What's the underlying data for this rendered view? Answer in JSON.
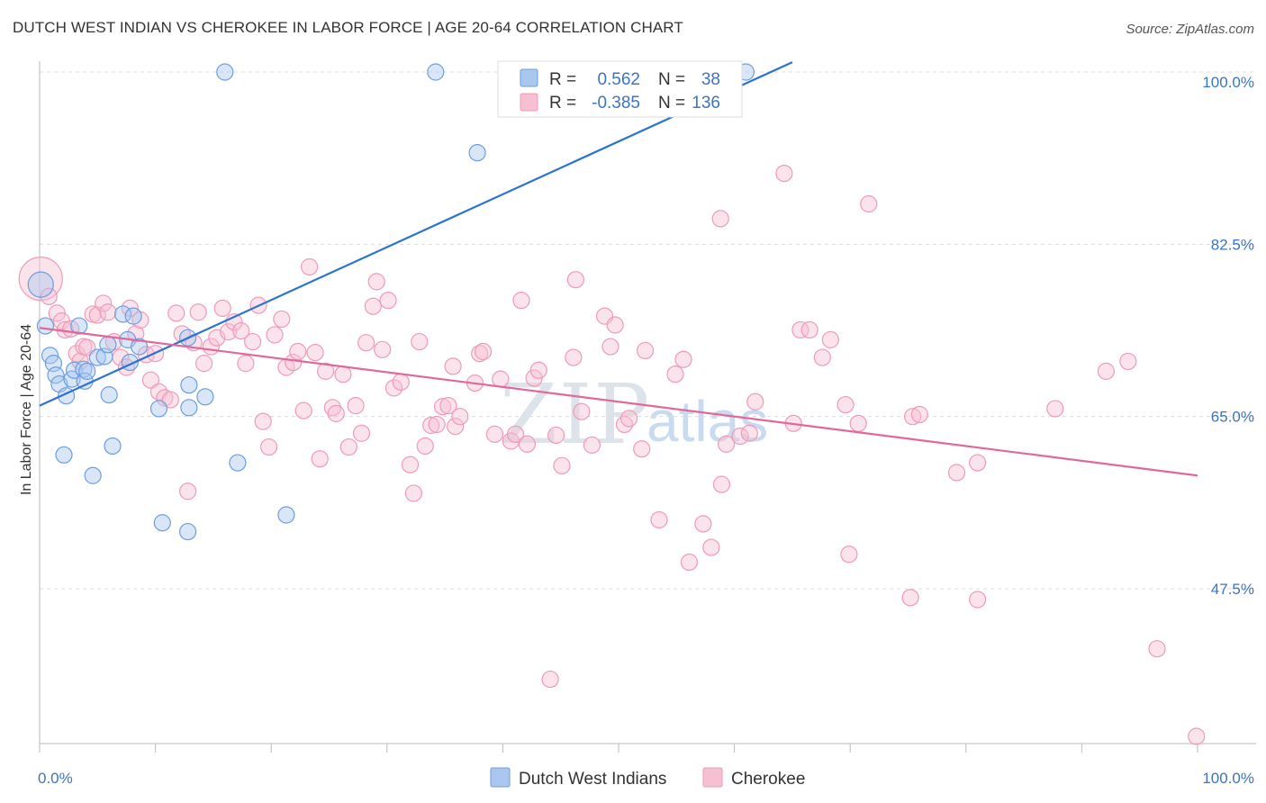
{
  "title": "DUTCH WEST INDIAN VS CHEROKEE IN LABOR FORCE | AGE 20-64 CORRELATION CHART",
  "source": "Source: ZipAtlas.com",
  "watermark": {
    "part1": "ZIP",
    "part2": "atlas"
  },
  "colors": {
    "blue_fill": "#a9c7ef",
    "blue_stroke": "#6d9de0",
    "blue_line": "#2b73d0",
    "pink_fill": "#f6c0d2",
    "pink_stroke": "#ef9ab8",
    "pink_line": "#e0689a",
    "tick_text": "#3b74c6",
    "grid": "#dddddd"
  },
  "legend": {
    "series1": {
      "r_label": "R =",
      "r_value": "0.562",
      "n_label": "N =",
      "n_value": "38"
    },
    "series2": {
      "r_label": "R =",
      "r_value": "-0.385",
      "n_label": "N =",
      "n_value": "136"
    }
  },
  "chart_data": {
    "type": "scatter",
    "title": "DUTCH WEST INDIAN VS CHEROKEE IN LABOR FORCE | AGE 20-64 CORRELATION CHART",
    "xlabel": "",
    "ylabel": "In Labor Force | Age 20-64",
    "xlim": [
      0,
      100
    ],
    "ylim": [
      31,
      102
    ],
    "x_tick_labels": [
      "0.0%",
      "100.0%"
    ],
    "y_ticks": [
      47.5,
      65.0,
      82.5,
      100.0
    ],
    "y_tick_labels": [
      "47.5%",
      "65.0%",
      "82.5%",
      "100.0%"
    ],
    "grid": true,
    "legend_position": "top-center",
    "series": [
      {
        "name": "Dutch West Indians",
        "color": "#a9c7ef",
        "r": 0.562,
        "n": 38,
        "trend": {
          "x": [
            0,
            65
          ],
          "y": [
            66.1,
            101.0
          ]
        },
        "points": [
          [
            0.1,
            78.4,
            14
          ],
          [
            0.5,
            74.2,
            9
          ],
          [
            0.9,
            71.2,
            9
          ],
          [
            1.2,
            70.4,
            9
          ],
          [
            1.4,
            69.2,
            9
          ],
          [
            1.7,
            68.3,
            9
          ],
          [
            2.3,
            67.1,
            9
          ],
          [
            2.8,
            68.8,
            9
          ],
          [
            3.0,
            69.7,
            9
          ],
          [
            3.4,
            74.2,
            9
          ],
          [
            3.8,
            69.8,
            9
          ],
          [
            3.9,
            68.6,
            9
          ],
          [
            4.1,
            69.6,
            9
          ],
          [
            2.1,
            61.1,
            9
          ],
          [
            4.6,
            59.0,
            9
          ],
          [
            5.0,
            71.0,
            9
          ],
          [
            5.6,
            71.1,
            9
          ],
          [
            5.9,
            72.3,
            9
          ],
          [
            6.0,
            67.2,
            9
          ],
          [
            6.3,
            62.0,
            9
          ],
          [
            7.2,
            75.4,
            9
          ],
          [
            8.1,
            75.2,
            9
          ],
          [
            7.6,
            72.8,
            9
          ],
          [
            8.6,
            72.1,
            9
          ],
          [
            7.8,
            70.5,
            9
          ],
          [
            10.3,
            65.8,
            9
          ],
          [
            10.6,
            54.2,
            9
          ],
          [
            12.8,
            73.0,
            9
          ],
          [
            12.9,
            68.2,
            9
          ],
          [
            12.9,
            65.9,
            9
          ],
          [
            14.3,
            67.0,
            9
          ],
          [
            12.8,
            53.3,
            9
          ],
          [
            16.0,
            100.0,
            9
          ],
          [
            17.1,
            60.3,
            9
          ],
          [
            21.3,
            55.0,
            9
          ],
          [
            34.2,
            100.0,
            9
          ],
          [
            37.8,
            91.8,
            9
          ],
          [
            61.0,
            100.0,
            9
          ]
        ]
      },
      {
        "name": "Cherokee",
        "color": "#f6c0d2",
        "r": -0.385,
        "n": 136,
        "trend": {
          "x": [
            0,
            100
          ],
          "y": [
            74.0,
            59.0
          ]
        },
        "points": [
          [
            0.1,
            79.0,
            24
          ],
          [
            0.8,
            77.2,
            9
          ],
          [
            1.5,
            75.5,
            9
          ],
          [
            1.9,
            74.7,
            9
          ],
          [
            2.2,
            73.8,
            9
          ],
          [
            2.7,
            73.9,
            9
          ],
          [
            3.2,
            71.4,
            9
          ],
          [
            3.5,
            70.6,
            9
          ],
          [
            3.8,
            72.1,
            9
          ],
          [
            4.1,
            72.0,
            9
          ],
          [
            4.6,
            75.4,
            9
          ],
          [
            5.0,
            75.3,
            9
          ],
          [
            5.5,
            76.5,
            9
          ],
          [
            5.9,
            75.6,
            9
          ],
          [
            6.4,
            72.6,
            9
          ],
          [
            7.0,
            71.0,
            9
          ],
          [
            7.5,
            70.0,
            9
          ],
          [
            7.8,
            76.0,
            9
          ],
          [
            8.3,
            73.4,
            9
          ],
          [
            8.7,
            74.8,
            9
          ],
          [
            9.2,
            71.3,
            9
          ],
          [
            9.6,
            68.7,
            9
          ],
          [
            10.0,
            71.4,
            9
          ],
          [
            10.3,
            67.5,
            9
          ],
          [
            10.8,
            66.9,
            9
          ],
          [
            11.3,
            66.7,
            9
          ],
          [
            11.8,
            75.5,
            9
          ],
          [
            12.3,
            73.4,
            9
          ],
          [
            12.8,
            57.4,
            9
          ],
          [
            13.3,
            72.5,
            9
          ],
          [
            13.7,
            75.6,
            9
          ],
          [
            14.2,
            70.4,
            9
          ],
          [
            14.8,
            72.1,
            9
          ],
          [
            15.3,
            73.0,
            9
          ],
          [
            15.8,
            76.0,
            9
          ],
          [
            16.3,
            73.6,
            9
          ],
          [
            16.8,
            74.6,
            9
          ],
          [
            17.4,
            73.7,
            9
          ],
          [
            17.8,
            70.4,
            9
          ],
          [
            18.4,
            72.6,
            9
          ],
          [
            18.9,
            76.3,
            9
          ],
          [
            19.3,
            64.5,
            9
          ],
          [
            19.8,
            61.9,
            9
          ],
          [
            20.3,
            73.3,
            9
          ],
          [
            20.9,
            74.9,
            9
          ],
          [
            21.3,
            70.0,
            9
          ],
          [
            21.9,
            70.5,
            9
          ],
          [
            22.3,
            71.6,
            9
          ],
          [
            22.8,
            65.6,
            9
          ],
          [
            23.3,
            80.2,
            9
          ],
          [
            23.8,
            71.5,
            9
          ],
          [
            24.2,
            60.7,
            9
          ],
          [
            24.7,
            69.6,
            9
          ],
          [
            25.3,
            65.9,
            9
          ],
          [
            25.6,
            65.3,
            9
          ],
          [
            26.2,
            69.3,
            9
          ],
          [
            26.7,
            61.9,
            9
          ],
          [
            27.3,
            66.1,
            9
          ],
          [
            27.8,
            63.3,
            9
          ],
          [
            28.2,
            72.5,
            9
          ],
          [
            28.8,
            76.2,
            9
          ],
          [
            29.1,
            78.7,
            9
          ],
          [
            29.6,
            71.8,
            9
          ],
          [
            30.1,
            76.8,
            9
          ],
          [
            30.6,
            67.9,
            9
          ],
          [
            31.2,
            68.5,
            9
          ],
          [
            32.0,
            60.1,
            9
          ],
          [
            32.3,
            57.2,
            9
          ],
          [
            32.8,
            72.6,
            9
          ],
          [
            33.3,
            62.0,
            9
          ],
          [
            33.8,
            64.1,
            9
          ],
          [
            34.3,
            64.2,
            9
          ],
          [
            34.8,
            66.0,
            9
          ],
          [
            35.3,
            66.1,
            9
          ],
          [
            35.7,
            70.1,
            9
          ],
          [
            35.9,
            64.0,
            9
          ],
          [
            36.3,
            65.0,
            9
          ],
          [
            37.6,
            68.4,
            9
          ],
          [
            38.0,
            71.4,
            9
          ],
          [
            38.3,
            71.6,
            9
          ],
          [
            39.3,
            63.2,
            9
          ],
          [
            39.8,
            68.8,
            9
          ],
          [
            40.7,
            62.5,
            9
          ],
          [
            41.1,
            63.2,
            9
          ],
          [
            41.6,
            76.8,
            9
          ],
          [
            42.1,
            62.2,
            9
          ],
          [
            42.7,
            68.9,
            9
          ],
          [
            43.1,
            69.7,
            9
          ],
          [
            44.1,
            38.3,
            9
          ],
          [
            44.6,
            63.1,
            9
          ],
          [
            45.1,
            60.0,
            9
          ],
          [
            46.1,
            71.0,
            9
          ],
          [
            46.3,
            78.9,
            9
          ],
          [
            46.8,
            65.5,
            9
          ],
          [
            47.7,
            62.1,
            9
          ],
          [
            48.8,
            75.2,
            9
          ],
          [
            49.3,
            72.1,
            9
          ],
          [
            49.7,
            74.3,
            9
          ],
          [
            50.5,
            64.2,
            9
          ],
          [
            50.9,
            64.8,
            9
          ],
          [
            52.0,
            61.7,
            9
          ],
          [
            52.3,
            71.7,
            9
          ],
          [
            53.5,
            54.5,
            9
          ],
          [
            54.9,
            69.3,
            9
          ],
          [
            55.6,
            70.8,
            9
          ],
          [
            56.1,
            50.2,
            9
          ],
          [
            57.3,
            54.1,
            9
          ],
          [
            58.0,
            51.7,
            9
          ],
          [
            58.8,
            85.1,
            9
          ],
          [
            58.9,
            58.1,
            9
          ],
          [
            59.3,
            62.2,
            9
          ],
          [
            60.5,
            63.0,
            9
          ],
          [
            61.3,
            63.3,
            9
          ],
          [
            61.8,
            66.5,
            9
          ],
          [
            64.3,
            89.7,
            9
          ],
          [
            65.1,
            64.3,
            9
          ],
          [
            65.7,
            73.8,
            9
          ],
          [
            66.5,
            73.8,
            9
          ],
          [
            67.6,
            71.0,
            9
          ],
          [
            68.3,
            72.8,
            9
          ],
          [
            69.6,
            66.2,
            9
          ],
          [
            69.9,
            51.0,
            9
          ],
          [
            70.7,
            64.3,
            9
          ],
          [
            71.6,
            86.6,
            9
          ],
          [
            75.2,
            46.6,
            9
          ],
          [
            75.4,
            65.0,
            9
          ],
          [
            76.0,
            65.2,
            9
          ],
          [
            79.2,
            59.3,
            9
          ],
          [
            81.0,
            46.4,
            9
          ],
          [
            81.0,
            60.3,
            9
          ],
          [
            87.7,
            65.8,
            9
          ],
          [
            92.1,
            69.6,
            9
          ],
          [
            94.0,
            70.6,
            9
          ],
          [
            96.5,
            41.4,
            9
          ],
          [
            99.9,
            32.5,
            9
          ]
        ]
      }
    ]
  }
}
